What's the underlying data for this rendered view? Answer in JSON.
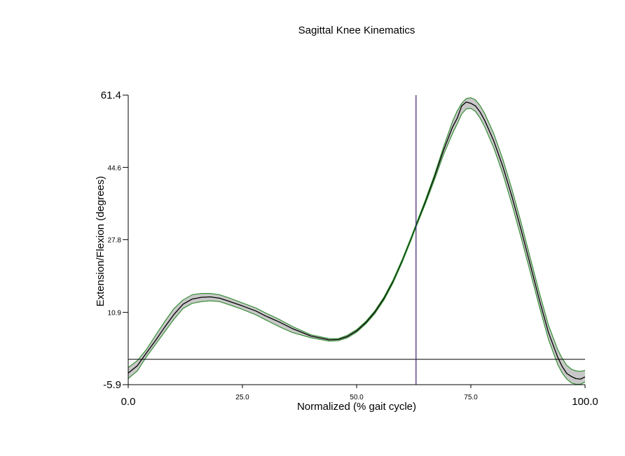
{
  "chart_data": {
    "type": "line",
    "title": "Sagittal Knee Kinematics",
    "xlabel": "Normalized (% gait cycle)",
    "ylabel": "Extension/Flexion (degrees)",
    "xlim": [
      0.0,
      100.0
    ],
    "ylim": [
      -5.9,
      61.4
    ],
    "x_ticks": [
      {
        "value": 0.0,
        "label": "0.0",
        "size": "large"
      },
      {
        "value": 25.0,
        "label": "25.0",
        "size": "small"
      },
      {
        "value": 50.0,
        "label": "50.0",
        "size": "small"
      },
      {
        "value": 75.0,
        "label": "75.0",
        "size": "small"
      },
      {
        "value": 100.0,
        "label": "100.0",
        "size": "large"
      }
    ],
    "y_ticks": [
      {
        "value": -5.9,
        "label": "-5.9",
        "size": "large"
      },
      {
        "value": 10.9,
        "label": "10.9",
        "size": "small"
      },
      {
        "value": 27.8,
        "label": "27.8",
        "size": "small"
      },
      {
        "value": 44.6,
        "label": "44.6",
        "size": "small"
      },
      {
        "value": 61.4,
        "label": "61.4",
        "size": "large"
      }
    ],
    "zero_line": 0,
    "vertical_marker_x": 63,
    "x": [
      0,
      2,
      4,
      6,
      8,
      10,
      12,
      14,
      16,
      18,
      20,
      22,
      25,
      28,
      30,
      33,
      36,
      40,
      44,
      46,
      48,
      50,
      52,
      54,
      56,
      58,
      60,
      62,
      63,
      65,
      67,
      69,
      71,
      72,
      73,
      74,
      75,
      76,
      77,
      78,
      80,
      82,
      84,
      86,
      88,
      90,
      92,
      94,
      95,
      96,
      97,
      98,
      99,
      100
    ],
    "series": [
      {
        "role": "mean",
        "color": "#000000",
        "values": [
          -3.2,
          -1.5,
          1.5,
          4.4,
          7.5,
          10.4,
          12.8,
          14.0,
          14.4,
          14.5,
          14.2,
          13.5,
          12.4,
          11.2,
          10.1,
          8.7,
          7.1,
          5.4,
          4.5,
          4.6,
          5.3,
          6.6,
          8.5,
          11.0,
          14.2,
          18.2,
          23.0,
          28.3,
          31.1,
          36.5,
          42.3,
          48.5,
          54.0,
          56.0,
          58.9,
          59.8,
          59.5,
          58.9,
          57.5,
          55.6,
          50.8,
          44.8,
          37.8,
          30.1,
          22.0,
          13.8,
          6.2,
          0.5,
          -1.7,
          -3.3,
          -4.0,
          -4.5,
          -4.6,
          -4.1
        ]
      },
      {
        "role": "upper",
        "color": "#2a8a2a",
        "values": [
          -1.9,
          -0.3,
          2.3,
          5.6,
          8.8,
          11.8,
          13.8,
          15.0,
          15.3,
          15.3,
          15.0,
          14.3,
          13.1,
          11.9,
          10.8,
          9.3,
          7.6,
          5.7,
          4.8,
          4.8,
          5.6,
          6.9,
          8.8,
          11.3,
          14.5,
          18.5,
          23.3,
          28.6,
          31.4,
          36.9,
          42.8,
          49.3,
          55.3,
          57.7,
          59.5,
          60.6,
          60.8,
          60.3,
          59.0,
          57.2,
          52.5,
          46.5,
          39.5,
          31.8,
          23.6,
          15.5,
          7.9,
          2.3,
          0.2,
          -1.4,
          -2.3,
          -2.7,
          -2.8,
          -2.6
        ]
      },
      {
        "role": "lower",
        "color": "#2a8a2a",
        "values": [
          -4.5,
          -2.7,
          0.6,
          3.5,
          6.4,
          9.3,
          11.8,
          13.0,
          13.4,
          13.6,
          13.4,
          12.7,
          11.6,
          10.3,
          9.2,
          7.6,
          6.2,
          5.0,
          4.2,
          4.3,
          5.0,
          6.3,
          8.2,
          10.6,
          13.8,
          17.8,
          22.6,
          27.9,
          30.7,
          36.0,
          41.6,
          47.5,
          52.5,
          54.7,
          57.0,
          58.2,
          58.3,
          57.6,
          56.1,
          54.1,
          49.2,
          43.1,
          36.0,
          28.3,
          20.3,
          12.2,
          4.6,
          -1.2,
          -3.2,
          -4.6,
          -5.5,
          -5.8,
          -5.8,
          -5.3
        ]
      }
    ]
  }
}
